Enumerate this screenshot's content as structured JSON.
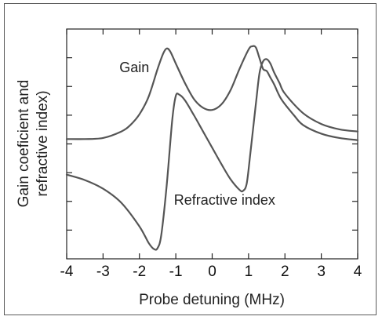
{
  "chart_data": {
    "type": "line",
    "title": "",
    "xlabel": "Probe detuning (MHz)",
    "ylabel_lines": [
      "Gain coeficient and",
      "refractive index)"
    ],
    "xlim": [
      -4,
      4
    ],
    "ylim": [
      -1.08,
      1.05
    ],
    "x_ticks": [
      -4,
      -3,
      -2,
      -1,
      0,
      1,
      2,
      3,
      4
    ],
    "y_ticks_count": 7,
    "y_tick_labels_shown": false,
    "grid": false,
    "series": [
      {
        "name": "Gain",
        "color": "#555555",
        "x": [
          -4.0,
          -3.5,
          -3.0,
          -2.5,
          -2.25,
          -2.0,
          -1.75,
          -1.5,
          -1.35,
          -1.25,
          -1.15,
          -1.0,
          -0.75,
          -0.5,
          -0.25,
          0.0,
          0.25,
          0.5,
          0.75,
          1.0,
          1.1,
          1.2,
          1.3,
          1.4,
          1.5,
          1.6,
          1.7,
          1.9,
          2.25,
          2.5,
          3.0,
          3.5,
          4.0
        ],
        "y": [
          0.03,
          0.03,
          0.04,
          0.1,
          0.16,
          0.26,
          0.42,
          0.68,
          0.82,
          0.87,
          0.84,
          0.73,
          0.55,
          0.4,
          0.32,
          0.3,
          0.35,
          0.48,
          0.68,
          0.86,
          0.89,
          0.88,
          0.78,
          0.68,
          0.66,
          0.6,
          0.54,
          0.4,
          0.25,
          0.16,
          0.08,
          0.04,
          0.02
        ]
      },
      {
        "name": "Refractive index",
        "color": "#555555",
        "x": [
          -4.0,
          -3.5,
          -3.0,
          -2.5,
          -2.0,
          -1.75,
          -1.6,
          -1.5,
          -1.4,
          -1.25,
          -1.1,
          -1.0,
          -0.9,
          -0.75,
          -0.5,
          -0.25,
          0.0,
          0.25,
          0.5,
          0.75,
          0.85,
          0.95,
          1.05,
          1.2,
          1.3,
          1.4,
          1.5,
          1.6,
          1.7,
          1.85,
          2.0,
          2.5,
          3.0,
          3.5,
          4.0
        ],
        "y": [
          -0.3,
          -0.35,
          -0.43,
          -0.56,
          -0.78,
          -0.93,
          -0.99,
          -0.98,
          -0.86,
          -0.4,
          0.2,
          0.43,
          0.44,
          0.39,
          0.25,
          0.1,
          -0.05,
          -0.2,
          -0.34,
          -0.44,
          -0.45,
          -0.38,
          -0.1,
          0.35,
          0.64,
          0.75,
          0.77,
          0.73,
          0.65,
          0.55,
          0.45,
          0.27,
          0.17,
          0.12,
          0.1
        ]
      }
    ],
    "annotations": [
      {
        "text": "Gain",
        "x": -2.55,
        "y": 0.65
      },
      {
        "text": "Refractive index",
        "x": -1.05,
        "y": -0.58
      }
    ]
  }
}
